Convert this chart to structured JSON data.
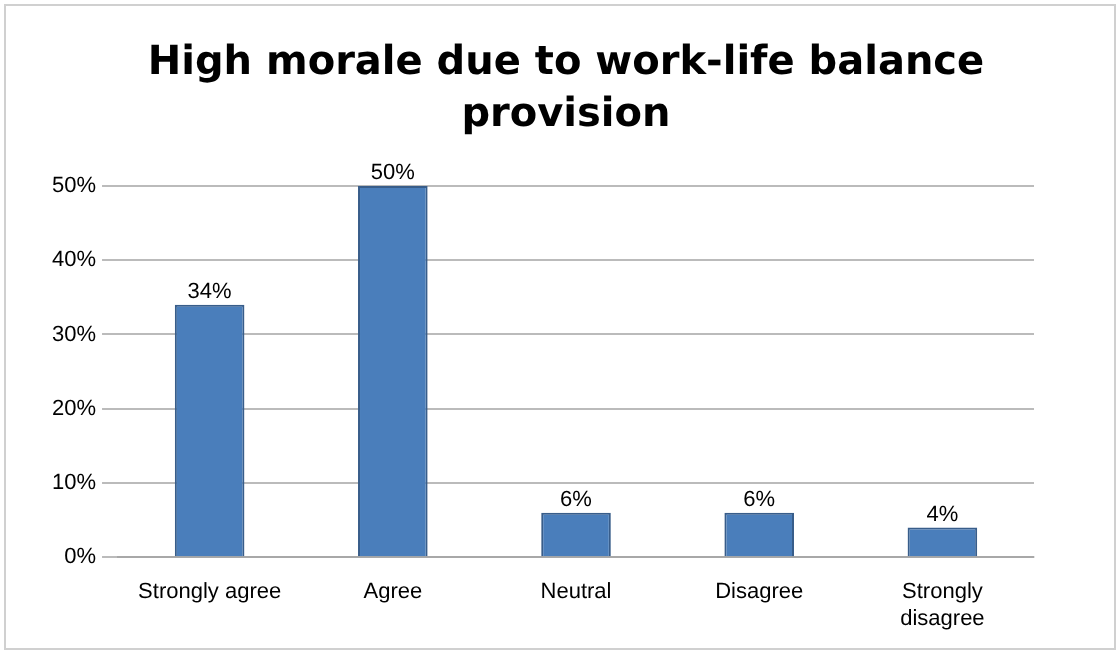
{
  "chart_data": {
    "type": "bar",
    "title": "High morale due to work-life balance provision",
    "categories": [
      "Strongly agree",
      "Agree",
      "Neutral",
      "Disagree",
      "Strongly disagree"
    ],
    "values": [
      34,
      50,
      6,
      6,
      4
    ],
    "value_labels": [
      "34%",
      "50%",
      "6%",
      "6%",
      "4%"
    ],
    "color": "#4a7ebb",
    "ylim": [
      0,
      50
    ],
    "yticks": [
      {
        "value": 0,
        "label": "0%"
      },
      {
        "value": 10,
        "label": "10%"
      },
      {
        "value": 20,
        "label": "20%"
      },
      {
        "value": 30,
        "label": "30%"
      },
      {
        "value": 40,
        "label": "40%"
      },
      {
        "value": 50,
        "label": "50%"
      }
    ],
    "grid": "y",
    "legend": false
  }
}
